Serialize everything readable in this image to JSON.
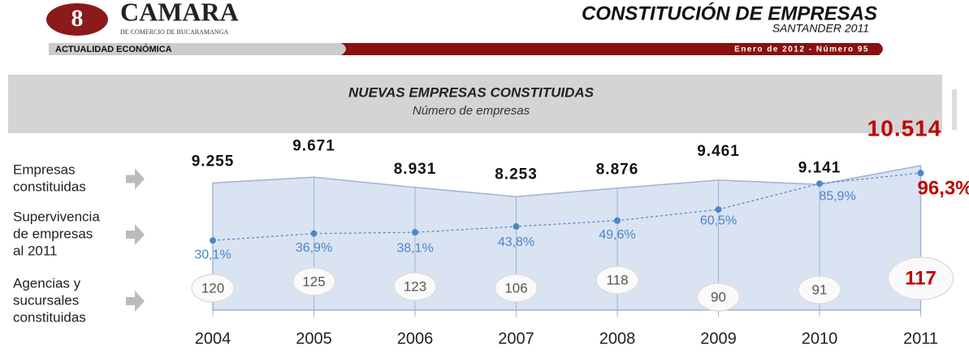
{
  "header": {
    "logo": "CAMARA",
    "logo_sub": "DE COMERCIO DE BUCARAMANGA",
    "title": "CONSTITUCIÓN DE EMPRESAS",
    "subtitle": "SANTANDER 2011",
    "section": "ACTUALIDAD ECONÓMICA",
    "issue": "Enero de 2012 - Número 95"
  },
  "chart_data": {
    "type": "area",
    "title": "NUEVAS EMPRESAS CONSTITUIDAS",
    "subtitle": "Número de empresas",
    "categories": [
      "2004",
      "2005",
      "2006",
      "2007",
      "2008",
      "2009",
      "2010",
      "2011"
    ],
    "series": [
      {
        "name": [
          "Empresas",
          "constituidas"
        ],
        "color": "#dae3f2",
        "values": [
          9255,
          9671,
          8931,
          8253,
          8876,
          9461,
          9141,
          10514
        ],
        "value_labels": [
          "9.255",
          "9.671",
          "8.931",
          "8.253",
          "8.876",
          "9.461",
          "9.141",
          "10.514"
        ]
      },
      {
        "name": [
          "Supervivencia",
          "de empresas",
          "al 2011"
        ],
        "color": "#4a86c8",
        "values": [
          30.1,
          36.9,
          38.1,
          43.8,
          49.6,
          60.5,
          85.9,
          96.3
        ],
        "value_labels": [
          "30,1%",
          "36,9%",
          "38,1%",
          "43,8%",
          "49,6%",
          "60,5%",
          "85,9%",
          "96,3%"
        ]
      },
      {
        "name": [
          "Agencias y",
          "sucursales",
          "constituidas"
        ],
        "color": "#555555",
        "values": [
          120,
          125,
          123,
          106,
          118,
          90,
          91,
          117
        ]
      }
    ],
    "highlight_color": "#c00000"
  }
}
